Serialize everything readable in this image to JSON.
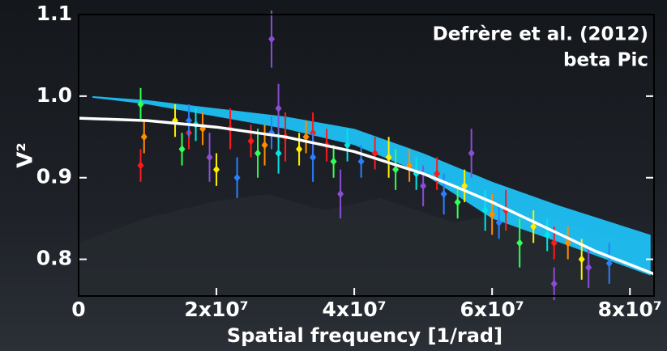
{
  "chart_data": {
    "type": "scatter",
    "xlabel": "Spatial frequency [1/rad]",
    "ylabel": "V²",
    "annotations": [
      "Defrère et al. (2012)",
      "beta Pic"
    ],
    "xlim": [
      0,
      83500000
    ],
    "ylim": [
      0.755,
      1.1
    ],
    "xticks": [
      0,
      {
        "value": 20000000,
        "label": "2x10⁷"
      },
      {
        "value": 40000000,
        "label": "4x10⁷"
      },
      {
        "value": 60000000,
        "label": "6x10⁷"
      },
      {
        "value": 80000000,
        "label": "8x10⁷"
      }
    ],
    "yticks": [
      0.8,
      0.9,
      {
        "value": 1,
        "label": "1.0"
      },
      1.1
    ],
    "band": {
      "color": "#1ec8ff",
      "x": [
        2000000,
        10000000,
        20000000,
        30000000,
        40000000,
        50000000,
        60000000,
        70000000,
        83000000
      ],
      "upper": [
        1.0,
        0.995,
        0.985,
        0.975,
        0.96,
        0.93,
        0.895,
        0.865,
        0.83
      ],
      "lower": [
        0.998,
        0.99,
        0.975,
        0.96,
        0.94,
        0.905,
        0.85,
        0.82,
        0.78
      ]
    },
    "model": {
      "color": "#ffffff",
      "x": [
        0,
        10000000,
        20000000,
        30000000,
        40000000,
        50000000,
        55000000,
        60000000,
        65000000,
        70000000,
        75000000,
        83500000
      ],
      "values": [
        0.973,
        0.97,
        0.962,
        0.95,
        0.932,
        0.905,
        0.888,
        0.87,
        0.85,
        0.83,
        0.81,
        0.782
      ]
    },
    "series": [
      {
        "color": "#ff1a1a",
        "x": [
          9000000,
          16000000,
          22000000,
          25000000,
          30000000,
          34000000,
          36000000,
          43000000,
          52000000,
          62000000,
          69000000
        ],
        "values": [
          0.915,
          0.955,
          0.96,
          0.945,
          0.95,
          0.955,
          0.94,
          0.93,
          0.905,
          0.86,
          0.82
        ],
        "errors": [
          0.02,
          0.02,
          0.025,
          0.02,
          0.03,
          0.025,
          0.02,
          0.02,
          0.02,
          0.025,
          0.02
        ]
      },
      {
        "color": "#ff8c00",
        "x": [
          9500000,
          18000000,
          27000000,
          33000000,
          48000000,
          60000000,
          71000000
        ],
        "values": [
          0.95,
          0.96,
          0.94,
          0.95,
          0.915,
          0.855,
          0.82
        ],
        "errors": [
          0.02,
          0.02,
          0.025,
          0.02,
          0.02,
          0.025,
          0.02
        ]
      },
      {
        "color": "#ffee00",
        "x": [
          14000000,
          20000000,
          32000000,
          45000000,
          56000000,
          66000000,
          73000000
        ],
        "values": [
          0.97,
          0.91,
          0.935,
          0.925,
          0.89,
          0.84,
          0.8
        ],
        "errors": [
          0.02,
          0.02,
          0.02,
          0.025,
          0.02,
          0.02,
          0.025
        ]
      },
      {
        "color": "#33ff55",
        "x": [
          9000000,
          15000000,
          26000000,
          37000000,
          46000000,
          55000000,
          64000000
        ],
        "values": [
          0.99,
          0.935,
          0.93,
          0.92,
          0.91,
          0.87,
          0.82
        ],
        "errors": [
          0.02,
          0.02,
          0.03,
          0.02,
          0.025,
          0.02,
          0.03
        ]
      },
      {
        "color": "#00e5e5",
        "x": [
          17000000,
          29000000,
          39000000,
          49000000,
          59000000,
          68000000
        ],
        "values": [
          0.965,
          0.93,
          0.94,
          0.905,
          0.86,
          0.83
        ],
        "errors": [
          0.02,
          0.025,
          0.02,
          0.02,
          0.025,
          0.02
        ]
      },
      {
        "color": "#2a7fff",
        "x": [
          16000000,
          23000000,
          28000000,
          34000000,
          41000000,
          53000000,
          61000000,
          77000000
        ],
        "values": [
          0.97,
          0.9,
          0.955,
          0.925,
          0.92,
          0.88,
          0.845,
          0.795
        ],
        "errors": [
          0.02,
          0.025,
          0.02,
          0.03,
          0.02,
          0.025,
          0.02,
          0.025
        ]
      },
      {
        "color": "#8a4dd6",
        "x": [
          19000000,
          28000000,
          29000000,
          38000000,
          50000000,
          57000000,
          69000000,
          74000000
        ],
        "values": [
          0.925,
          1.07,
          0.985,
          0.88,
          0.89,
          0.93,
          0.77,
          0.79
        ],
        "errors": [
          0.03,
          0.035,
          0.03,
          0.03,
          0.025,
          0.03,
          0.02,
          0.025
        ]
      }
    ]
  }
}
